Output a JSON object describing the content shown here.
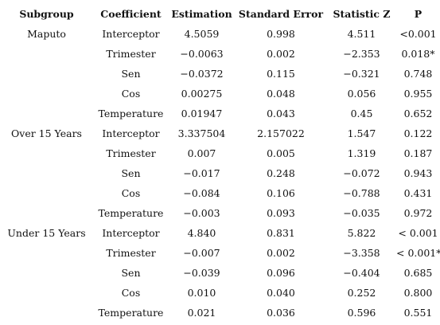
{
  "headers": [
    "Subgroup",
    "Coefficient",
    "Estimation",
    "Standard Error",
    "Statistic Z",
    "P"
  ],
  "rows": [
    [
      "Maputo",
      "Interceptor",
      "4.5059",
      "0.998",
      "4.511",
      "<0.001"
    ],
    [
      "",
      "Trimester",
      "−0.0063",
      "0.002",
      "−2.353",
      "0.018*"
    ],
    [
      "",
      "Sen",
      "−0.0372",
      "0.115",
      "−0.321",
      "0.748"
    ],
    [
      "",
      "Cos",
      "0.00275",
      "0.048",
      "0.056",
      "0.955"
    ],
    [
      "",
      "Temperature",
      "0.01947",
      "0.043",
      "0.45",
      "0.652"
    ],
    [
      "Over 15 Years",
      "Interceptor",
      "3.337504",
      "2.157022",
      "1.547",
      "0.122"
    ],
    [
      "",
      "Trimester",
      "0.007",
      "0.005",
      "1.319",
      "0.187"
    ],
    [
      "",
      "Sen",
      "−0.017",
      "0.248",
      "−0.072",
      "0.943"
    ],
    [
      "",
      "Cos",
      "−0.084",
      "0.106",
      "−0.788",
      "0.431"
    ],
    [
      "",
      "Temperature",
      "−0.003",
      "0.093",
      "−0.035",
      "0.972"
    ],
    [
      "Under 15 Years",
      "Interceptor",
      "4.840",
      "0.831",
      "5.822",
      "< 0.001"
    ],
    [
      "",
      "Trimester",
      "−0.007",
      "0.002",
      "−3.358",
      "< 0.001*"
    ],
    [
      "",
      "Sen",
      "−0.039",
      "0.096",
      "−0.404",
      "0.685"
    ],
    [
      "",
      "Cos",
      "0.010",
      "0.040",
      "0.252",
      "0.800"
    ],
    [
      "",
      "Temperature",
      "0.021",
      "0.036",
      "0.596",
      "0.551"
    ]
  ]
}
